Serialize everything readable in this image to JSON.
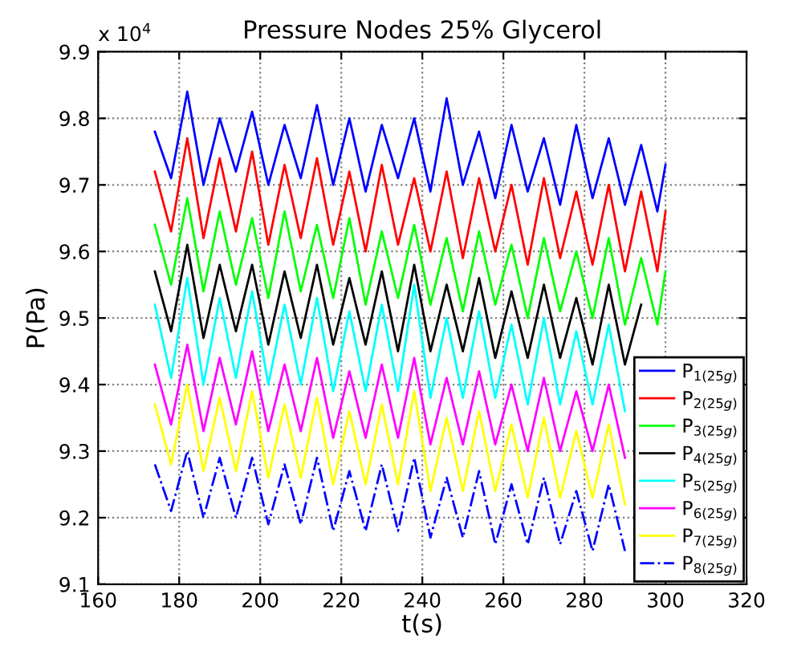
{
  "chart_data": {
    "type": "line",
    "title": "Pressure Nodes 25% Glycerol",
    "xlabel": "t(s)",
    "ylabel": "P(Pa)",
    "annotations": [
      "x 10$^{4}$"
    ],
    "x": [
      174,
      178,
      182,
      186,
      190,
      194,
      198,
      202,
      206,
      210,
      214,
      218,
      222,
      226,
      230,
      234,
      238,
      242,
      246,
      250,
      254,
      258,
      262,
      266,
      270,
      274,
      278,
      282,
      286,
      290,
      294,
      298,
      300
    ],
    "xlim": [
      160,
      320
    ],
    "xticks": [
      160,
      180,
      200,
      220,
      240,
      260,
      280,
      300,
      320
    ],
    "ylim": [
      9.1,
      9.9
    ],
    "yticks": [
      9.1,
      9.2,
      9.3,
      9.4,
      9.5,
      9.6,
      9.7,
      9.8,
      9.9
    ],
    "grid": true,
    "legend": "bottom right",
    "marker": "none",
    "series": [
      {
        "name": "P$_{1(25g)}$",
        "color": "#0000ff",
        "line_style": "solid",
        "values": [
          9.78,
          9.71,
          9.84,
          9.7,
          9.8,
          9.72,
          9.81,
          9.7,
          9.79,
          9.71,
          9.82,
          9.7,
          9.8,
          9.69,
          9.79,
          9.71,
          9.8,
          9.69,
          9.83,
          9.7,
          9.78,
          9.68,
          9.79,
          9.69,
          9.77,
          9.67,
          9.79,
          9.68,
          9.77,
          9.67,
          9.76,
          9.66,
          9.73
        ]
      },
      {
        "name": "P$_{2(25g)}$",
        "color": "#ff0000",
        "line_style": "solid",
        "values": [
          9.72,
          9.63,
          9.77,
          9.62,
          9.74,
          9.63,
          9.75,
          9.61,
          9.73,
          9.62,
          9.74,
          9.61,
          9.72,
          9.6,
          9.73,
          9.61,
          9.71,
          9.6,
          9.72,
          9.59,
          9.71,
          9.6,
          9.7,
          9.58,
          9.71,
          9.59,
          9.69,
          9.58,
          9.7,
          9.57,
          9.69,
          9.57,
          9.66
        ]
      },
      {
        "name": "P$_{3(25g)}$",
        "color": "#00ff00",
        "line_style": "solid",
        "values": [
          9.64,
          9.55,
          9.68,
          9.54,
          9.66,
          9.55,
          9.65,
          9.53,
          9.66,
          9.54,
          9.64,
          9.53,
          9.65,
          9.52,
          9.63,
          9.53,
          9.64,
          9.52,
          9.62,
          9.51,
          9.63,
          9.52,
          9.61,
          9.5,
          9.62,
          9.51,
          9.6,
          9.5,
          9.62,
          9.49,
          9.59,
          9.49,
          9.57
        ]
      },
      {
        "name": "P$_{4(25g)}$",
        "color": "#000000",
        "line_style": "solid",
        "values": [
          9.57,
          9.48,
          9.61,
          9.47,
          9.58,
          9.48,
          9.58,
          9.46,
          9.57,
          9.47,
          9.58,
          9.46,
          9.56,
          9.46,
          9.57,
          9.45,
          9.58,
          9.45,
          9.55,
          9.45,
          9.56,
          9.44,
          9.54,
          9.44,
          9.55,
          9.44,
          9.53,
          9.43,
          9.55,
          9.43,
          9.52,
          null,
          null
        ]
      },
      {
        "name": "P$_{5(25g)}$",
        "color": "#00ffff",
        "line_style": "solid",
        "values": [
          9.52,
          9.41,
          9.56,
          9.4,
          9.53,
          9.41,
          9.54,
          9.4,
          9.52,
          9.4,
          9.53,
          9.39,
          9.51,
          9.39,
          9.52,
          9.39,
          9.55,
          9.38,
          9.5,
          9.38,
          9.51,
          9.38,
          9.49,
          9.37,
          9.5,
          9.37,
          9.48,
          9.37,
          9.49,
          9.36,
          null,
          null,
          null
        ]
      },
      {
        "name": "P$_{6(25g)}$",
        "color": "#ff00ff",
        "line_style": "solid",
        "values": [
          9.43,
          9.34,
          9.46,
          9.33,
          9.44,
          9.34,
          9.45,
          9.33,
          9.43,
          9.33,
          9.44,
          9.32,
          9.42,
          9.32,
          9.43,
          9.32,
          9.44,
          9.31,
          9.41,
          9.31,
          9.42,
          9.31,
          9.4,
          9.3,
          9.41,
          9.3,
          9.39,
          9.3,
          9.4,
          9.29,
          null,
          null,
          null
        ]
      },
      {
        "name": "P$_{7(25g)}$",
        "color": "#ffff00",
        "line_style": "solid",
        "values": [
          9.37,
          9.28,
          9.4,
          9.27,
          9.38,
          9.27,
          9.39,
          9.26,
          9.37,
          9.26,
          9.38,
          9.25,
          9.36,
          9.25,
          9.37,
          9.25,
          9.39,
          9.24,
          9.35,
          9.24,
          9.36,
          9.24,
          9.34,
          9.23,
          9.35,
          9.23,
          9.33,
          9.23,
          9.34,
          9.22,
          null,
          null,
          null
        ]
      },
      {
        "name": "P$_{8(25g)}$",
        "color": "#0000ff",
        "line_style": "dashed",
        "values": [
          9.28,
          9.21,
          9.3,
          9.2,
          9.29,
          9.2,
          9.29,
          9.19,
          9.28,
          9.19,
          9.29,
          9.18,
          9.27,
          9.18,
          9.28,
          9.18,
          9.29,
          9.17,
          9.26,
          9.17,
          9.27,
          9.16,
          9.25,
          9.16,
          9.26,
          9.16,
          9.24,
          9.15,
          9.25,
          9.15,
          null,
          null,
          null
        ]
      }
    ]
  }
}
